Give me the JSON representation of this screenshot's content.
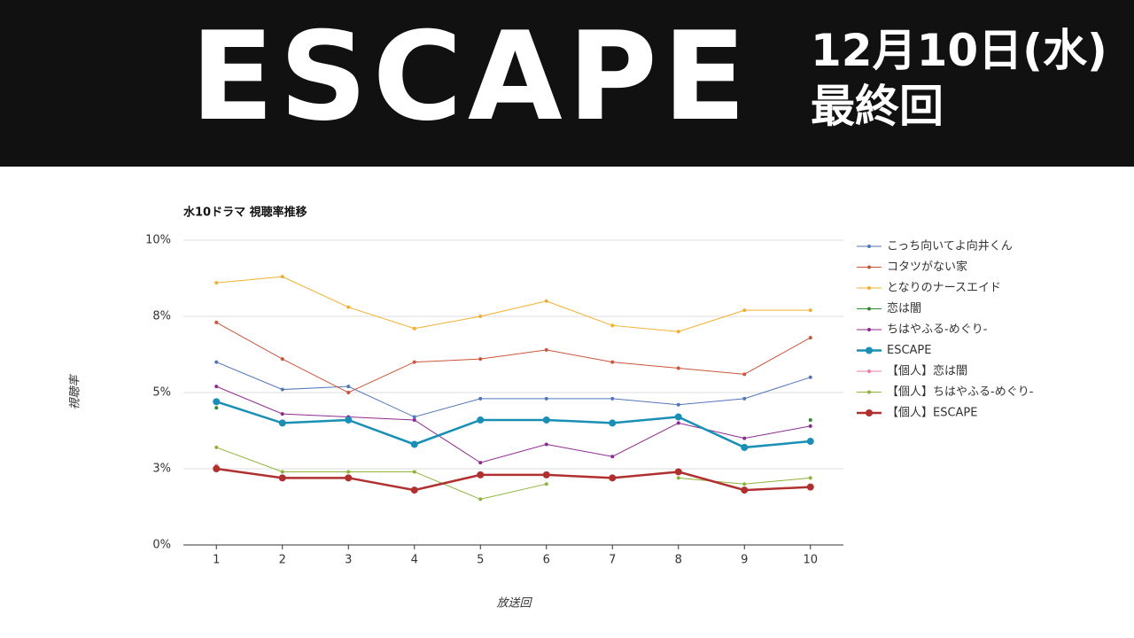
{
  "header": {
    "title": "ESCAPE",
    "date": "12月10日(水)",
    "episode": "最終回"
  },
  "chart_data": {
    "type": "line",
    "title": "水10ドラマ 視聴率推移",
    "xlabel": "放送回",
    "ylabel": "視聴率",
    "x": [
      1,
      2,
      3,
      4,
      5,
      6,
      7,
      8,
      9,
      10
    ],
    "xlim": [
      0.5,
      10.5
    ],
    "xticks": [
      1,
      2,
      3,
      4,
      5,
      6,
      7,
      8,
      9,
      10
    ],
    "ylim": [
      0,
      10
    ],
    "yticks": [
      {
        "value": 0,
        "label": "0%"
      },
      {
        "value": 2.5,
        "label": "3%"
      },
      {
        "value": 5,
        "label": "5%"
      },
      {
        "value": 7.5,
        "label": "8%"
      },
      {
        "value": 10,
        "label": "10%"
      }
    ],
    "grid": true,
    "legend": "right",
    "series": [
      {
        "name": "こっち向いてよ向井くん",
        "color": "#5276b8",
        "values": [
          6.0,
          5.1,
          5.2,
          4.2,
          4.8,
          4.8,
          4.8,
          4.6,
          4.8,
          5.5
        ]
      },
      {
        "name": "コタツがない家",
        "color": "#c9553a",
        "values": [
          7.3,
          6.1,
          5.0,
          6.0,
          6.1,
          6.4,
          6.0,
          5.8,
          5.6,
          6.8
        ]
      },
      {
        "name": "となりのナースエイド",
        "color": "#f0b030",
        "values": [
          8.6,
          8.8,
          7.8,
          7.1,
          7.5,
          8.0,
          7.2,
          7.0,
          7.7,
          7.7
        ]
      },
      {
        "name": "恋は闇",
        "color": "#2e8b2e",
        "values": [
          4.5,
          null,
          null,
          null,
          null,
          null,
          null,
          null,
          null,
          4.1
        ]
      },
      {
        "name": "ちはやふる-めぐり-",
        "color": "#8e2a8e",
        "values": [
          5.2,
          4.3,
          4.2,
          4.1,
          2.7,
          3.3,
          2.9,
          4.0,
          3.5,
          3.9
        ]
      },
      {
        "name": "ESCAPE",
        "color": "#1a8fb5",
        "bold": true,
        "values": [
          4.7,
          4.0,
          4.1,
          3.3,
          4.1,
          4.1,
          4.0,
          4.2,
          3.2,
          3.4
        ]
      },
      {
        "name": "【個人】恋は闇",
        "color": "#e87fa0",
        "values": [
          2.6,
          null,
          null,
          null,
          null,
          null,
          null,
          null,
          null,
          null
        ]
      },
      {
        "name": "【個人】ちはやふる-めぐり-",
        "color": "#8db33a",
        "values": [
          3.2,
          2.4,
          2.4,
          2.4,
          1.5,
          2.0,
          null,
          2.2,
          2.0,
          2.2
        ]
      },
      {
        "name": "【個人】ESCAPE",
        "color": "#b03030",
        "bold": true,
        "values": [
          2.5,
          2.2,
          2.2,
          1.8,
          2.3,
          2.3,
          2.2,
          2.4,
          1.8,
          1.9
        ]
      }
    ]
  }
}
